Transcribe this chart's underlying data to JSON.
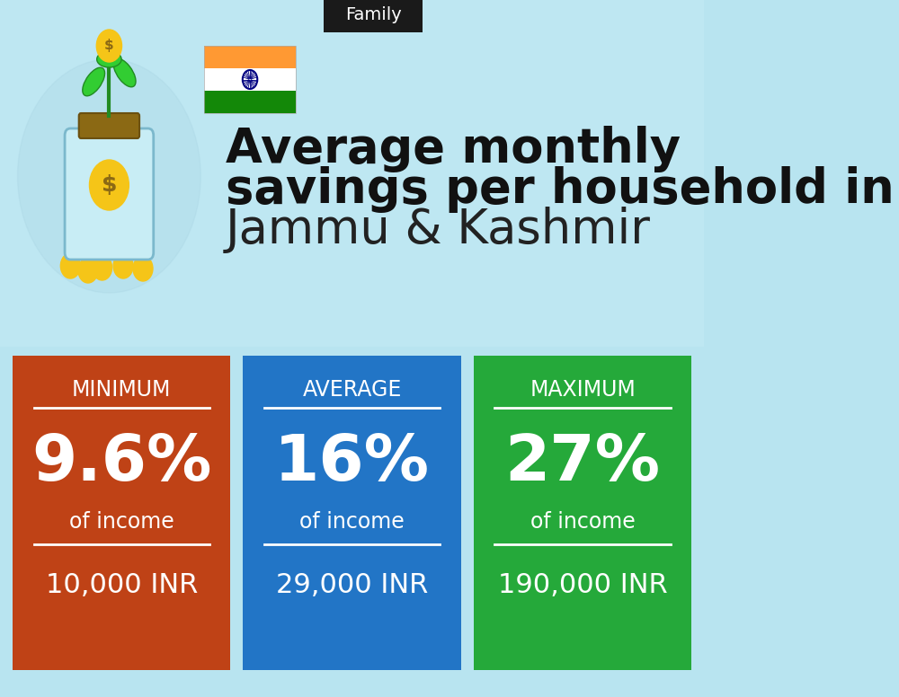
{
  "title_tag": "Family",
  "title_line1": "Average monthly",
  "title_line2": "savings per household in",
  "title_line3": "Jammu & Kashmir",
  "bg_color_top": "#a8dce8",
  "bg_color_bottom": "#b0e0ec",
  "tag_bg": "#1a1a1a",
  "tag_text": "Family",
  "tag_text_color": "#ffffff",
  "cards": [
    {
      "label": "MINIMUM",
      "percent": "9.6%",
      "sub": "of income",
      "amount": "10,000 INR",
      "color": "#c0390a"
    },
    {
      "label": "AVERAGE",
      "percent": "16%",
      "sub": "of income",
      "amount": "29,000 INR",
      "color": "#1a6fc4"
    },
    {
      "label": "MAXIMUM",
      "percent": "27%",
      "sub": "of income",
      "amount": "190,000 INR",
      "color": "#1da630"
    }
  ],
  "title_bold_color": "#111111",
  "title_regular_color": "#222222",
  "flag_colors": [
    "#FF9933",
    "#FFFFFF",
    "#138808"
  ],
  "flag_ashoka_color": "#000080"
}
